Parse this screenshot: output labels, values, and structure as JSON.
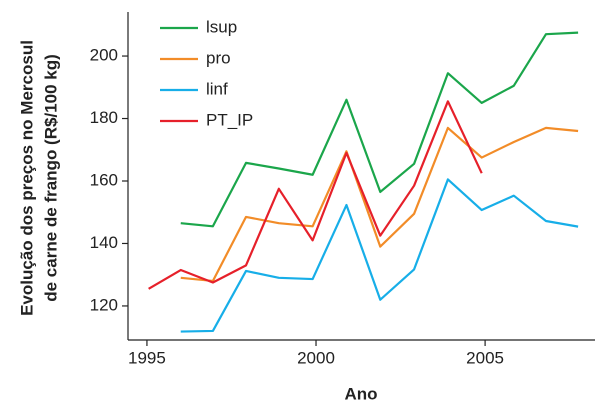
{
  "chart_data": {
    "type": "line",
    "x_label": "Ano",
    "y_label": [
      "Evolução dos preços no Mercosul",
      "de carne de frango (R$/100 kg)"
    ],
    "x": [
      1995.05,
      1996.0,
      1996.95,
      1997.93,
      1998.9,
      1999.9,
      2000.9,
      2001.9,
      2002.9,
      2003.9,
      2004.9,
      2005.85,
      2006.8,
      2007.75
    ],
    "series": [
      {
        "name": "lsup",
        "color": "#1ba64b",
        "values": [
          null,
          146.5,
          145.5,
          165.8,
          164,
          162,
          186,
          156.5,
          165.5,
          194.5,
          185,
          190.5,
          207,
          207.5
        ]
      },
      {
        "name": "pro",
        "color": "#f28c28",
        "values": [
          null,
          129,
          128,
          148.5,
          146.5,
          145.5,
          169.5,
          139,
          149.5,
          177,
          167.5,
          172.5,
          177,
          176
        ]
      },
      {
        "name": "linf",
        "color": "#17aee8",
        "values": [
          null,
          111.8,
          112,
          131.2,
          129,
          128.6,
          152.3,
          122,
          131.7,
          160.5,
          150.7,
          155.3,
          147.2,
          145.4
        ]
      },
      {
        "name": "PT_IP",
        "color": "#e6202a",
        "values": [
          125.5,
          131.5,
          127.5,
          133,
          157.5,
          141,
          169,
          142.5,
          158.5,
          185.5,
          162.5,
          null,
          null,
          null
        ]
      }
    ],
    "xlim": [
      1994.44,
      2008.25
    ],
    "xticks": [
      1995,
      2000,
      2005
    ],
    "ylim": [
      109.1,
      214.1
    ],
    "yticks": [
      120,
      140,
      160,
      180,
      200
    ],
    "grid": false,
    "legend": "top-left"
  }
}
